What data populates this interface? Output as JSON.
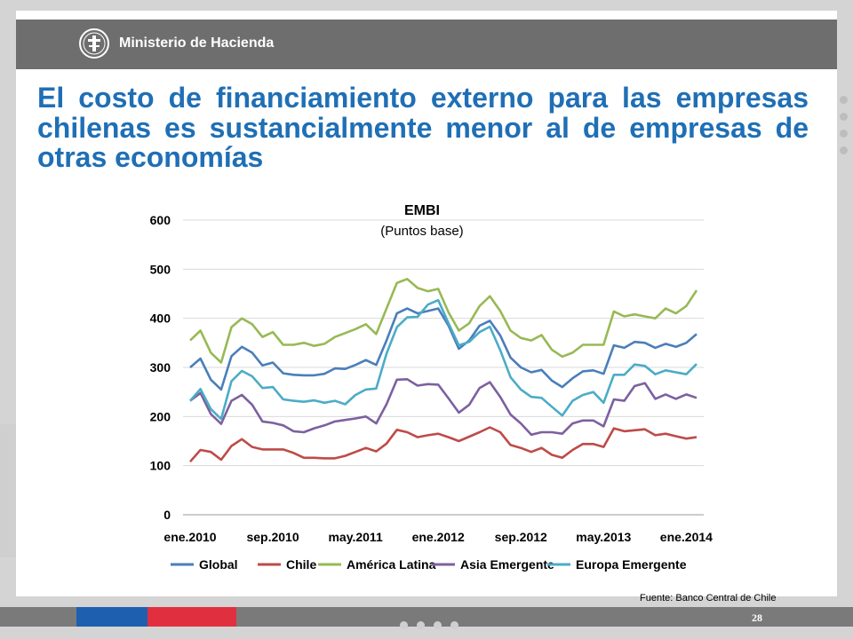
{
  "header": {
    "ministry_name": "Ministerio de Hacienda"
  },
  "slide_title": "El costo de financiamiento externo para las empresas chilenas es sustancialmente menor al de empresas de otras economías",
  "source_note": "Fuente: Banco Central de Chile",
  "page_number": "28",
  "colors": {
    "header_bar": "#6e6e6e",
    "title": "#1f6fb5",
    "footer_blue": "#1f5fb0",
    "footer_red": "#e03040"
  },
  "chart_data": {
    "type": "line",
    "title": "EMBI",
    "subtitle": "(Puntos base)",
    "ylim": [
      0,
      600
    ],
    "yticks": [
      0,
      100,
      200,
      300,
      400,
      500,
      600
    ],
    "x": [
      "ene.2010",
      "feb.2010",
      "mar.2010",
      "abr.2010",
      "may.2010",
      "jun.2010",
      "jul.2010",
      "ago.2010",
      "sep.2010",
      "oct.2010",
      "nov.2010",
      "dic.2010",
      "ene.2011",
      "feb.2011",
      "mar.2011",
      "abr.2011",
      "may.2011",
      "jun.2011",
      "jul.2011",
      "ago.2011",
      "sep.2011",
      "oct.2011",
      "nov.2011",
      "dic.2011",
      "ene.2012",
      "feb.2012",
      "mar.2012",
      "abr.2012",
      "may.2012",
      "jun.2012",
      "jul.2012",
      "ago.2012",
      "sep.2012",
      "oct.2012",
      "nov.2012",
      "dic.2012",
      "ene.2013",
      "feb.2013",
      "mar.2013",
      "abr.2013",
      "may.2013",
      "jun.2013",
      "jul.2013",
      "ago.2013",
      "sep.2013",
      "oct.2013",
      "nov.2013",
      "dic.2013",
      "ene.2014",
      "feb.2014"
    ],
    "xtick_labels": [
      "ene.2010",
      "sep.2010",
      "may.2011",
      "ene.2012",
      "sep.2012",
      "may.2013",
      "ene.2014"
    ],
    "xtick_index": [
      0,
      8,
      16,
      24,
      32,
      40,
      48
    ],
    "legend_position": "bottom",
    "grid": "horizontal",
    "series": [
      {
        "name": "Global",
        "color": "#4a7ebb",
        "values": [
          300,
          318,
          275,
          255,
          323,
          342,
          330,
          304,
          310,
          288,
          285,
          284,
          284,
          287,
          298,
          297,
          305,
          315,
          305,
          355,
          410,
          420,
          410,
          415,
          420,
          385,
          338,
          355,
          385,
          395,
          365,
          320,
          300,
          290,
          295,
          273,
          260,
          278,
          292,
          294,
          287,
          345,
          340,
          352,
          350,
          340,
          348,
          342,
          350,
          368
        ]
      },
      {
        "name": "Chile",
        "color": "#be4b48",
        "values": [
          108,
          132,
          128,
          112,
          140,
          154,
          138,
          133,
          133,
          133,
          126,
          116,
          116,
          115,
          115,
          120,
          128,
          136,
          129,
          145,
          173,
          168,
          158,
          162,
          165,
          158,
          150,
          159,
          168,
          178,
          168,
          142,
          136,
          128,
          136,
          122,
          116,
          132,
          144,
          144,
          138,
          176,
          170,
          172,
          174,
          162,
          165,
          160,
          155,
          158
        ]
      },
      {
        "name": "América Latina",
        "color": "#98b954",
        "values": [
          355,
          375,
          330,
          310,
          382,
          400,
          388,
          362,
          372,
          346,
          346,
          350,
          344,
          348,
          362,
          370,
          378,
          388,
          368,
          420,
          472,
          480,
          462,
          455,
          460,
          412,
          375,
          390,
          425,
          445,
          415,
          375,
          360,
          355,
          366,
          336,
          322,
          330,
          346,
          346,
          346,
          414,
          404,
          408,
          404,
          400,
          420,
          410,
          425,
          457
        ]
      },
      {
        "name": "Asia Emergente",
        "color": "#7d60a0",
        "values": [
          232,
          248,
          205,
          185,
          232,
          244,
          224,
          190,
          187,
          182,
          170,
          168,
          176,
          182,
          190,
          193,
          196,
          200,
          186,
          225,
          275,
          276,
          263,
          266,
          265,
          237,
          208,
          224,
          258,
          270,
          240,
          204,
          186,
          163,
          168,
          168,
          165,
          186,
          192,
          192,
          180,
          235,
          232,
          262,
          268,
          236,
          245,
          236,
          245,
          238
        ]
      },
      {
        "name": "Europa Emergente",
        "color": "#4bacc6",
        "values": [
          232,
          256,
          215,
          195,
          272,
          293,
          282,
          258,
          260,
          235,
          232,
          230,
          233,
          228,
          232,
          225,
          244,
          255,
          257,
          328,
          382,
          402,
          403,
          428,
          437,
          390,
          345,
          352,
          372,
          383,
          335,
          280,
          255,
          240,
          238,
          220,
          202,
          232,
          244,
          250,
          228,
          285,
          285,
          306,
          303,
          286,
          294,
          290,
          286,
          307
        ]
      }
    ]
  }
}
